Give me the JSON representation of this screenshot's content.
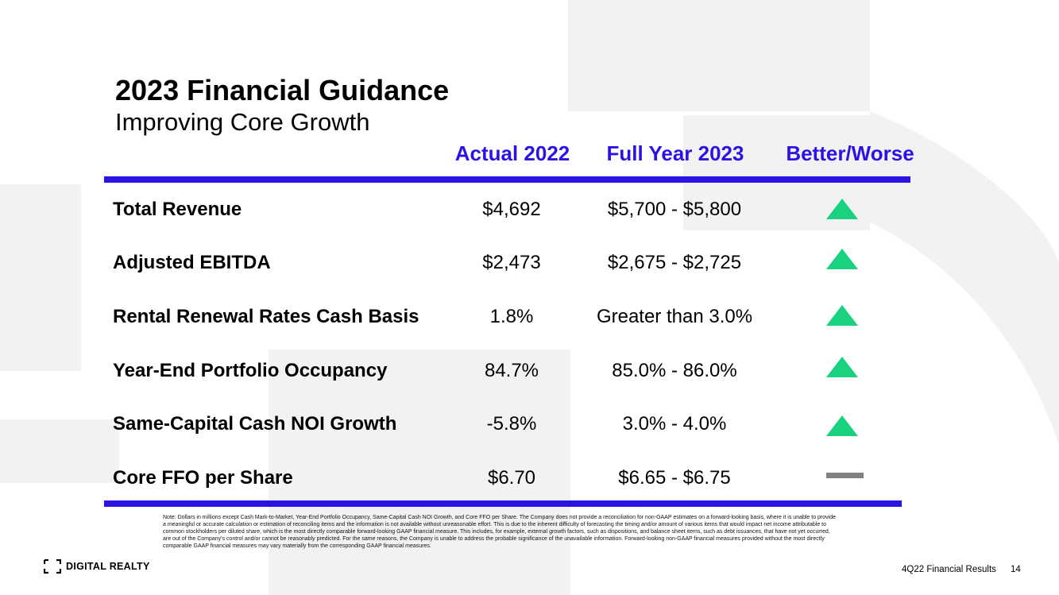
{
  "slide": {
    "title": "2023 Financial Guidance",
    "subtitle": "Improving Core Growth"
  },
  "table": {
    "columns": [
      "Actual 2022",
      "Full Year 2023",
      "Better/Worse"
    ],
    "rows": [
      {
        "label": "Total Revenue",
        "actual_2022": "$4,692",
        "full_year_2023": "$5,700 - $5,800",
        "trend": "better"
      },
      {
        "label": "Adjusted EBITDA",
        "actual_2022": "$2,473",
        "full_year_2023": "$2,675 - $2,725",
        "trend": "better"
      },
      {
        "label": "Rental Renewal Rates Cash Basis",
        "actual_2022": "1.8%",
        "full_year_2023": "Greater than 3.0%",
        "trend": "better"
      },
      {
        "label": "Year-End Portfolio Occupancy",
        "actual_2022": "84.7%",
        "full_year_2023": "85.0% - 86.0%",
        "trend": "better"
      },
      {
        "label": "Same-Capital Cash NOI Growth",
        "actual_2022": "-5.8%",
        "full_year_2023": "3.0% - 4.0%",
        "trend": "better"
      },
      {
        "label": "Core FFO per Share",
        "actual_2022": "$6.70",
        "full_year_2023": "$6.65 - $6.75",
        "trend": "neutral"
      }
    ]
  },
  "note": "Note: Dollars in millions except Cash Mark-to-Market, Year-End Portfolio Occupancy, Same-Capital Cash NOI Growth, and Core FFO per Share. The Company does not provide a reconciliation for non-GAAP estimates on a forward-looking basis, where it is unable to provide a meaningful or accurate calculation or estimation of reconciling items and the information is not available without unreasonable effort. This is due to the inherent difficulty of forecasting the timing and/or amount of various items that would impact net income attributable to common stockholders per diluted share, which is the most directly comparable forward-looking GAAP financial measure. This includes, for example, external growth factors, such as dispositions, and balance sheet items, such as debt issuances, that have not yet occurred, are out of the Company's control and/or cannot be reasonably predicted. For the same reasons, the Company is unable to address the probable significance of the unavailable information. Forward-looking non-GAAP financial measures provided without the most directly comparable GAAP financial measures may vary materially from the corresponding GAAP financial measures.",
  "footer": {
    "logo_text": "DIGITAL REALTY",
    "report": "4Q22 Financial Results",
    "page": "14"
  },
  "icons": {
    "better": "triangle-up-icon",
    "neutral": "dash-icon",
    "logo": "bracket-logo-icon"
  },
  "colors": {
    "accent": "#2b13e6",
    "better": "#19d27f",
    "neutral": "#808080",
    "background_shape": "#f2f2f2"
  }
}
